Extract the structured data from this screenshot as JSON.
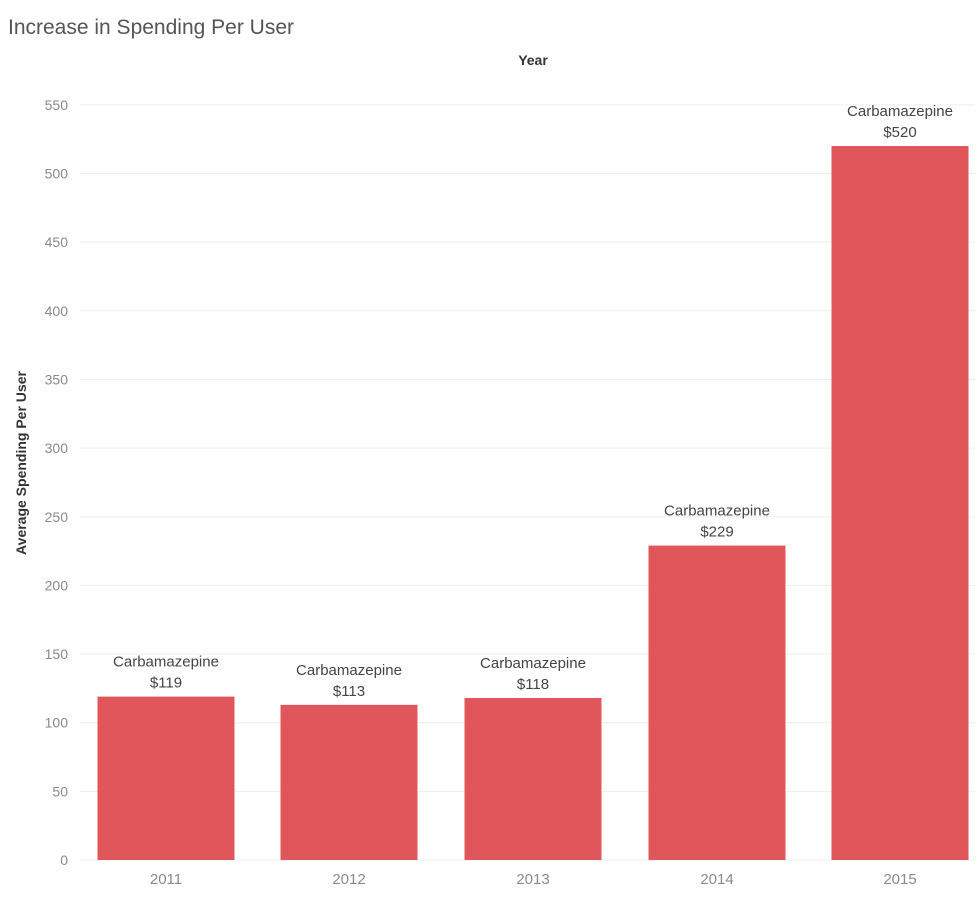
{
  "chart_data": {
    "type": "bar",
    "title": "Increase in Spending Per User",
    "xlabel": "Year",
    "ylabel": "Average Spending Per User",
    "categories": [
      "2011",
      "2012",
      "2013",
      "2014",
      "2015"
    ],
    "series": [
      {
        "name": "Carbamazepine",
        "values": [
          119,
          113,
          118,
          229,
          520
        ]
      }
    ],
    "data_labels": [
      {
        "name": "Carbamazepine",
        "value": "$119"
      },
      {
        "name": "Carbamazepine",
        "value": "$113"
      },
      {
        "name": "Carbamazepine",
        "value": "$118"
      },
      {
        "name": "Carbamazepine",
        "value": "$229"
      },
      {
        "name": "Carbamazepine",
        "value": "$520"
      }
    ],
    "ylim": [
      0,
      560
    ],
    "y_ticks": [
      0,
      50,
      100,
      150,
      200,
      250,
      300,
      350,
      400,
      450,
      500,
      550
    ],
    "grid": true
  },
  "colors": {
    "bar": "#E0565A",
    "title": "#555555",
    "axis_title": "#333333",
    "tick_label": "#8a8a8a",
    "data_label": "#444444",
    "grid": "#eeeeee"
  }
}
